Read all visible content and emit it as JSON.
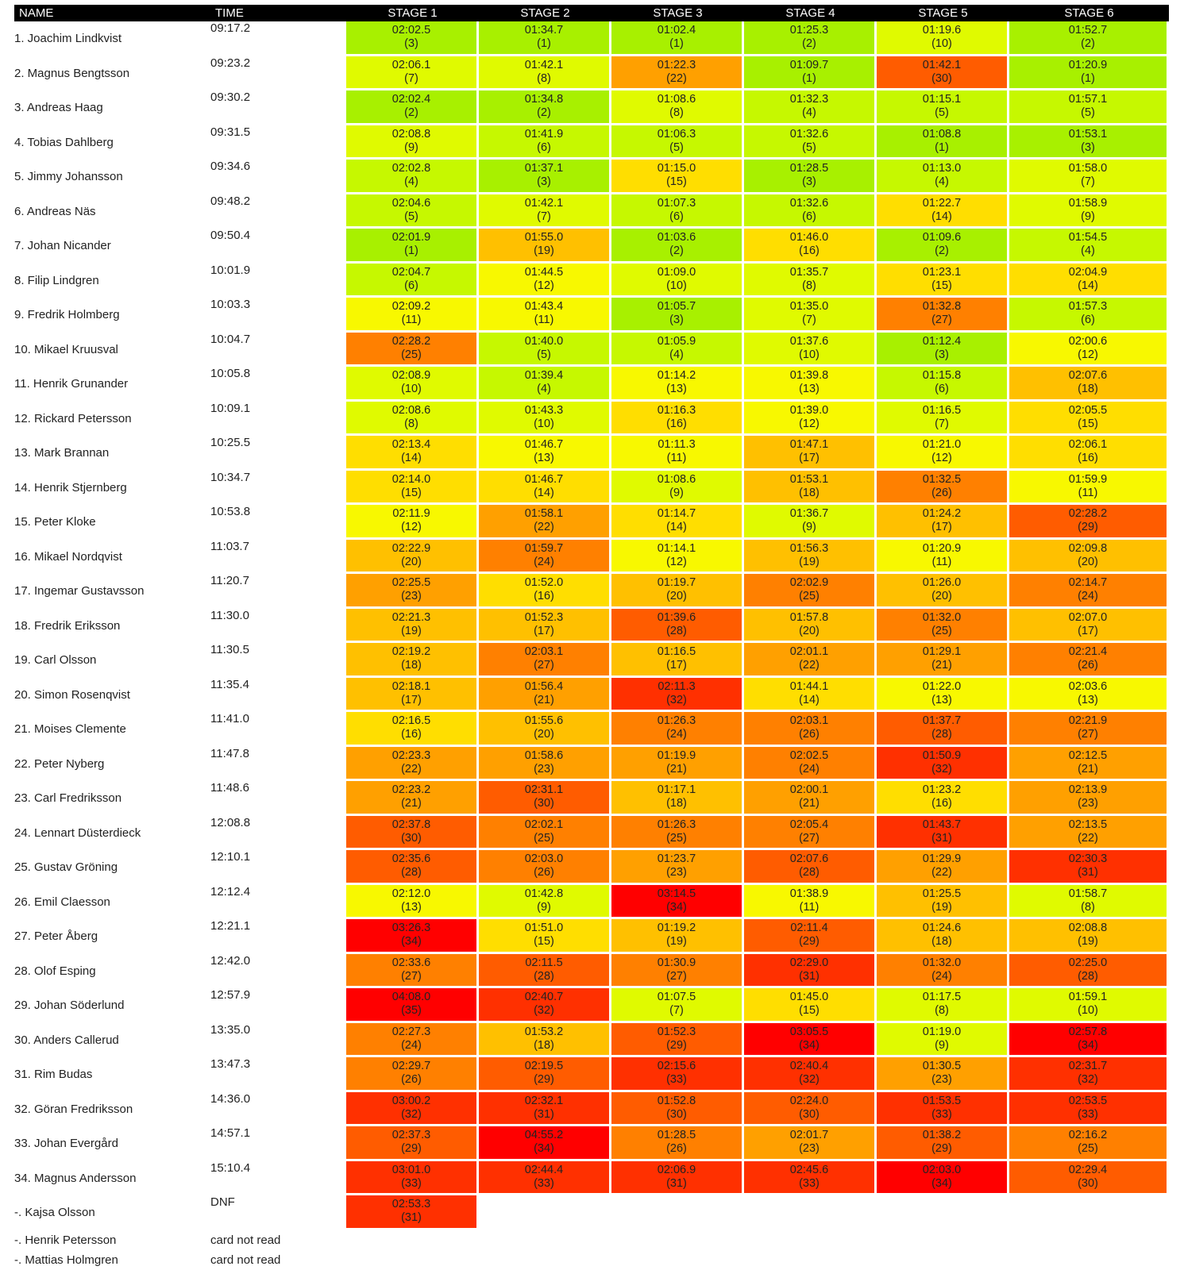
{
  "header": {
    "name": "NAME",
    "time": "TIME",
    "stages": [
      "STAGE 1",
      "STAGE 2",
      "STAGE 3",
      "STAGE 4",
      "STAGE 5",
      "STAGE 6"
    ]
  },
  "heat_colors": [
    "#a8f000",
    "#c6f800",
    "#e0fa00",
    "#f8f800",
    "#ffde00",
    "#ffc000",
    "#ffa000",
    "#ff8000",
    "#ff5c00",
    "#ff3000",
    "#ff0000"
  ],
  "rows": [
    {
      "name": "1. Joachim Lindkvist",
      "time": "09:17.2",
      "stages": [
        [
          "02:02.5",
          "(3)"
        ],
        [
          "01:34.7",
          "(1)"
        ],
        [
          "01:02.4",
          "(1)"
        ],
        [
          "01:25.3",
          "(2)"
        ],
        [
          "01:19.6",
          "(10)"
        ],
        [
          "01:52.7",
          "(2)"
        ]
      ]
    },
    {
      "name": "2. Magnus Bengtsson",
      "time": "09:23.2",
      "stages": [
        [
          "02:06.1",
          "(7)"
        ],
        [
          "01:42.1",
          "(8)"
        ],
        [
          "01:22.3",
          "(22)"
        ],
        [
          "01:09.7",
          "(1)"
        ],
        [
          "01:42.1",
          "(30)"
        ],
        [
          "01:20.9",
          "(1)"
        ]
      ]
    },
    {
      "name": "3. Andreas Haag",
      "time": "09:30.2",
      "stages": [
        [
          "02:02.4",
          "(2)"
        ],
        [
          "01:34.8",
          "(2)"
        ],
        [
          "01:08.6",
          "(8)"
        ],
        [
          "01:32.3",
          "(4)"
        ],
        [
          "01:15.1",
          "(5)"
        ],
        [
          "01:57.1",
          "(5)"
        ]
      ]
    },
    {
      "name": "4. Tobias Dahlberg",
      "time": "09:31.5",
      "stages": [
        [
          "02:08.8",
          "(9)"
        ],
        [
          "01:41.9",
          "(6)"
        ],
        [
          "01:06.3",
          "(5)"
        ],
        [
          "01:32.6",
          "(5)"
        ],
        [
          "01:08.8",
          "(1)"
        ],
        [
          "01:53.1",
          "(3)"
        ]
      ]
    },
    {
      "name": "5. Jimmy Johansson",
      "time": "09:34.6",
      "stages": [
        [
          "02:02.8",
          "(4)"
        ],
        [
          "01:37.1",
          "(3)"
        ],
        [
          "01:15.0",
          "(15)"
        ],
        [
          "01:28.5",
          "(3)"
        ],
        [
          "01:13.0",
          "(4)"
        ],
        [
          "01:58.0",
          "(7)"
        ]
      ]
    },
    {
      "name": "6. Andreas Näs",
      "time": "09:48.2",
      "stages": [
        [
          "02:04.6",
          "(5)"
        ],
        [
          "01:42.1",
          "(7)"
        ],
        [
          "01:07.3",
          "(6)"
        ],
        [
          "01:32.6",
          "(6)"
        ],
        [
          "01:22.7",
          "(14)"
        ],
        [
          "01:58.9",
          "(9)"
        ]
      ]
    },
    {
      "name": "7. Johan Nicander",
      "time": "09:50.4",
      "stages": [
        [
          "02:01.9",
          "(1)"
        ],
        [
          "01:55.0",
          "(19)"
        ],
        [
          "01:03.6",
          "(2)"
        ],
        [
          "01:46.0",
          "(16)"
        ],
        [
          "01:09.6",
          "(2)"
        ],
        [
          "01:54.5",
          "(4)"
        ]
      ]
    },
    {
      "name": "8. Filip Lindgren",
      "time": "10:01.9",
      "stages": [
        [
          "02:04.7",
          "(6)"
        ],
        [
          "01:44.5",
          "(12)"
        ],
        [
          "01:09.0",
          "(10)"
        ],
        [
          "01:35.7",
          "(8)"
        ],
        [
          "01:23.1",
          "(15)"
        ],
        [
          "02:04.9",
          "(14)"
        ]
      ]
    },
    {
      "name": "9. Fredrik Holmberg",
      "time": "10:03.3",
      "stages": [
        [
          "02:09.2",
          "(11)"
        ],
        [
          "01:43.4",
          "(11)"
        ],
        [
          "01:05.7",
          "(3)"
        ],
        [
          "01:35.0",
          "(7)"
        ],
        [
          "01:32.8",
          "(27)"
        ],
        [
          "01:57.3",
          "(6)"
        ]
      ]
    },
    {
      "name": "10. Mikael Kruusval",
      "time": "10:04.7",
      "stages": [
        [
          "02:28.2",
          "(25)"
        ],
        [
          "01:40.0",
          "(5)"
        ],
        [
          "01:05.9",
          "(4)"
        ],
        [
          "01:37.6",
          "(10)"
        ],
        [
          "01:12.4",
          "(3)"
        ],
        [
          "02:00.6",
          "(12)"
        ]
      ]
    },
    {
      "name": "11. Henrik Grunander",
      "time": "10:05.8",
      "stages": [
        [
          "02:08.9",
          "(10)"
        ],
        [
          "01:39.4",
          "(4)"
        ],
        [
          "01:14.2",
          "(13)"
        ],
        [
          "01:39.8",
          "(13)"
        ],
        [
          "01:15.8",
          "(6)"
        ],
        [
          "02:07.6",
          "(18)"
        ]
      ]
    },
    {
      "name": "12. Rickard Petersson",
      "time": "10:09.1",
      "stages": [
        [
          "02:08.6",
          "(8)"
        ],
        [
          "01:43.3",
          "(10)"
        ],
        [
          "01:16.3",
          "(16)"
        ],
        [
          "01:39.0",
          "(12)"
        ],
        [
          "01:16.5",
          "(7)"
        ],
        [
          "02:05.5",
          "(15)"
        ]
      ]
    },
    {
      "name": "13. Mark Brannan",
      "time": "10:25.5",
      "stages": [
        [
          "02:13.4",
          "(14)"
        ],
        [
          "01:46.7",
          "(13)"
        ],
        [
          "01:11.3",
          "(11)"
        ],
        [
          "01:47.1",
          "(17)"
        ],
        [
          "01:21.0",
          "(12)"
        ],
        [
          "02:06.1",
          "(16)"
        ]
      ]
    },
    {
      "name": "14. Henrik Stjernberg",
      "time": "10:34.7",
      "stages": [
        [
          "02:14.0",
          "(15)"
        ],
        [
          "01:46.7",
          "(14)"
        ],
        [
          "01:08.6",
          "(9)"
        ],
        [
          "01:53.1",
          "(18)"
        ],
        [
          "01:32.5",
          "(26)"
        ],
        [
          "01:59.9",
          "(11)"
        ]
      ]
    },
    {
      "name": "15. Peter Kloke",
      "time": "10:53.8",
      "stages": [
        [
          "02:11.9",
          "(12)"
        ],
        [
          "01:58.1",
          "(22)"
        ],
        [
          "01:14.7",
          "(14)"
        ],
        [
          "01:36.7",
          "(9)"
        ],
        [
          "01:24.2",
          "(17)"
        ],
        [
          "02:28.2",
          "(29)"
        ]
      ]
    },
    {
      "name": "16. Mikael Nordqvist",
      "time": "11:03.7",
      "stages": [
        [
          "02:22.9",
          "(20)"
        ],
        [
          "01:59.7",
          "(24)"
        ],
        [
          "01:14.1",
          "(12)"
        ],
        [
          "01:56.3",
          "(19)"
        ],
        [
          "01:20.9",
          "(11)"
        ],
        [
          "02:09.8",
          "(20)"
        ]
      ]
    },
    {
      "name": "17. Ingemar Gustavsson",
      "time": "11:20.7",
      "stages": [
        [
          "02:25.5",
          "(23)"
        ],
        [
          "01:52.0",
          "(16)"
        ],
        [
          "01:19.7",
          "(20)"
        ],
        [
          "02:02.9",
          "(25)"
        ],
        [
          "01:26.0",
          "(20)"
        ],
        [
          "02:14.7",
          "(24)"
        ]
      ]
    },
    {
      "name": "18. Fredrik Eriksson",
      "time": "11:30.0",
      "stages": [
        [
          "02:21.3",
          "(19)"
        ],
        [
          "01:52.3",
          "(17)"
        ],
        [
          "01:39.6",
          "(28)"
        ],
        [
          "01:57.8",
          "(20)"
        ],
        [
          "01:32.0",
          "(25)"
        ],
        [
          "02:07.0",
          "(17)"
        ]
      ]
    },
    {
      "name": "19. Carl Olsson",
      "time": "11:30.5",
      "stages": [
        [
          "02:19.2",
          "(18)"
        ],
        [
          "02:03.1",
          "(27)"
        ],
        [
          "01:16.5",
          "(17)"
        ],
        [
          "02:01.1",
          "(22)"
        ],
        [
          "01:29.1",
          "(21)"
        ],
        [
          "02:21.4",
          "(26)"
        ]
      ]
    },
    {
      "name": "20. Simon Rosenqvist",
      "time": "11:35.4",
      "stages": [
        [
          "02:18.1",
          "(17)"
        ],
        [
          "01:56.4",
          "(21)"
        ],
        [
          "02:11.3",
          "(32)"
        ],
        [
          "01:44.1",
          "(14)"
        ],
        [
          "01:22.0",
          "(13)"
        ],
        [
          "02:03.6",
          "(13)"
        ]
      ]
    },
    {
      "name": "21. Moises Clemente",
      "time": "11:41.0",
      "stages": [
        [
          "02:16.5",
          "(16)"
        ],
        [
          "01:55.6",
          "(20)"
        ],
        [
          "01:26.3",
          "(24)"
        ],
        [
          "02:03.1",
          "(26)"
        ],
        [
          "01:37.7",
          "(28)"
        ],
        [
          "02:21.9",
          "(27)"
        ]
      ]
    },
    {
      "name": "22. Peter Nyberg",
      "time": "11:47.8",
      "stages": [
        [
          "02:23.3",
          "(22)"
        ],
        [
          "01:58.6",
          "(23)"
        ],
        [
          "01:19.9",
          "(21)"
        ],
        [
          "02:02.5",
          "(24)"
        ],
        [
          "01:50.9",
          "(32)"
        ],
        [
          "02:12.5",
          "(21)"
        ]
      ]
    },
    {
      "name": "23. Carl Fredriksson",
      "time": "11:48.6",
      "stages": [
        [
          "02:23.2",
          "(21)"
        ],
        [
          "02:31.1",
          "(30)"
        ],
        [
          "01:17.1",
          "(18)"
        ],
        [
          "02:00.1",
          "(21)"
        ],
        [
          "01:23.2",
          "(16)"
        ],
        [
          "02:13.9",
          "(23)"
        ]
      ]
    },
    {
      "name": "24. Lennart Düsterdieck",
      "time": "12:08.8",
      "stages": [
        [
          "02:37.8",
          "(30)"
        ],
        [
          "02:02.1",
          "(25)"
        ],
        [
          "01:26.3",
          "(25)"
        ],
        [
          "02:05.4",
          "(27)"
        ],
        [
          "01:43.7",
          "(31)"
        ],
        [
          "02:13.5",
          "(22)"
        ]
      ]
    },
    {
      "name": "25. Gustav Gröning",
      "time": "12:10.1",
      "stages": [
        [
          "02:35.6",
          "(28)"
        ],
        [
          "02:03.0",
          "(26)"
        ],
        [
          "01:23.7",
          "(23)"
        ],
        [
          "02:07.6",
          "(28)"
        ],
        [
          "01:29.9",
          "(22)"
        ],
        [
          "02:30.3",
          "(31)"
        ]
      ]
    },
    {
      "name": "26. Emil Claesson",
      "time": "12:12.4",
      "stages": [
        [
          "02:12.0",
          "(13)"
        ],
        [
          "01:42.8",
          "(9)"
        ],
        [
          "03:14.5",
          "(34)"
        ],
        [
          "01:38.9",
          "(11)"
        ],
        [
          "01:25.5",
          "(19)"
        ],
        [
          "01:58.7",
          "(8)"
        ]
      ]
    },
    {
      "name": "27. Peter Åberg",
      "time": "12:21.1",
      "stages": [
        [
          "03:26.3",
          "(34)"
        ],
        [
          "01:51.0",
          "(15)"
        ],
        [
          "01:19.2",
          "(19)"
        ],
        [
          "02:11.4",
          "(29)"
        ],
        [
          "01:24.6",
          "(18)"
        ],
        [
          "02:08.8",
          "(19)"
        ]
      ]
    },
    {
      "name": "28. Olof Esping",
      "time": "12:42.0",
      "stages": [
        [
          "02:33.6",
          "(27)"
        ],
        [
          "02:11.5",
          "(28)"
        ],
        [
          "01:30.9",
          "(27)"
        ],
        [
          "02:29.0",
          "(31)"
        ],
        [
          "01:32.0",
          "(24)"
        ],
        [
          "02:25.0",
          "(28)"
        ]
      ]
    },
    {
      "name": "29. Johan Söderlund",
      "time": "12:57.9",
      "stages": [
        [
          "04:08.0",
          "(35)"
        ],
        [
          "02:40.7",
          "(32)"
        ],
        [
          "01:07.5",
          "(7)"
        ],
        [
          "01:45.0",
          "(15)"
        ],
        [
          "01:17.5",
          "(8)"
        ],
        [
          "01:59.1",
          "(10)"
        ]
      ]
    },
    {
      "name": "30. Anders Callerud",
      "time": "13:35.0",
      "stages": [
        [
          "02:27.3",
          "(24)"
        ],
        [
          "01:53.2",
          "(18)"
        ],
        [
          "01:52.3",
          "(29)"
        ],
        [
          "03:05.5",
          "(34)"
        ],
        [
          "01:19.0",
          "(9)"
        ],
        [
          "02:57.8",
          "(34)"
        ]
      ]
    },
    {
      "name": "31. Rim Budas",
      "time": "13:47.3",
      "stages": [
        [
          "02:29.7",
          "(26)"
        ],
        [
          "02:19.5",
          "(29)"
        ],
        [
          "02:15.6",
          "(33)"
        ],
        [
          "02:40.4",
          "(32)"
        ],
        [
          "01:30.5",
          "(23)"
        ],
        [
          "02:31.7",
          "(32)"
        ]
      ]
    },
    {
      "name": "32. Göran Fredriksson",
      "time": "14:36.0",
      "stages": [
        [
          "03:00.2",
          "(32)"
        ],
        [
          "02:32.1",
          "(31)"
        ],
        [
          "01:52.8",
          "(30)"
        ],
        [
          "02:24.0",
          "(30)"
        ],
        [
          "01:53.5",
          "(33)"
        ],
        [
          "02:53.5",
          "(33)"
        ]
      ]
    },
    {
      "name": "33. Johan Evergård",
      "time": "14:57.1",
      "stages": [
        [
          "02:37.3",
          "(29)"
        ],
        [
          "04:55.2",
          "(34)"
        ],
        [
          "01:28.5",
          "(26)"
        ],
        [
          "02:01.7",
          "(23)"
        ],
        [
          "01:38.2",
          "(29)"
        ],
        [
          "02:16.2",
          "(25)"
        ]
      ]
    },
    {
      "name": "34. Magnus Andersson",
      "time": "15:10.4",
      "stages": [
        [
          "03:01.0",
          "(33)"
        ],
        [
          "02:44.4",
          "(33)"
        ],
        [
          "02:06.9",
          "(31)"
        ],
        [
          "02:45.6",
          "(33)"
        ],
        [
          "02:03.0",
          "(34)"
        ],
        [
          "02:29.4",
          "(30)"
        ]
      ]
    },
    {
      "name": "-. Kajsa Olsson",
      "time": "DNF",
      "stages": [
        [
          "02:53.3",
          "(31)"
        ]
      ]
    },
    {
      "name": "-. Henrik Petersson",
      "time": "card not read",
      "stages": []
    },
    {
      "name": "-. Mattias Holmgren",
      "time": "card not read",
      "stages": []
    }
  ]
}
